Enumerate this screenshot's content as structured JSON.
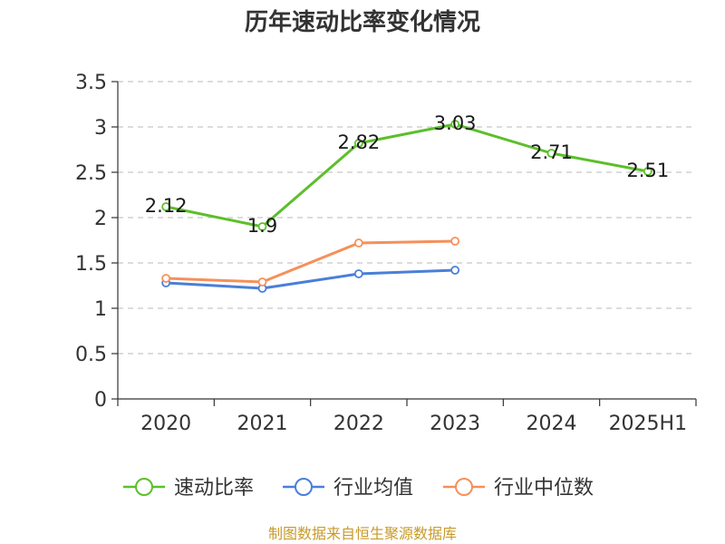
{
  "chart_data": {
    "type": "line",
    "title": "历年速动比率变化情况",
    "categories": [
      "2020",
      "2021",
      "2022",
      "2023",
      "2024",
      "2025H1"
    ],
    "ylim": [
      0,
      3.5
    ],
    "yticks": [
      "0",
      "0.5",
      "1",
      "1.5",
      "2",
      "2.5",
      "3",
      "3.5"
    ],
    "grid": true,
    "legend_position": "bottom",
    "series": [
      {
        "name": "速动比率",
        "color": "#5cbf2a",
        "values": [
          2.12,
          1.9,
          2.82,
          3.03,
          2.71,
          2.51
        ],
        "labels": [
          "2.12",
          "1.9",
          "2.82",
          "3.03",
          "2.71",
          "2.51"
        ]
      },
      {
        "name": "行业均值",
        "color": "#4a7fd8",
        "values": [
          1.28,
          1.22,
          1.38,
          1.42,
          null,
          null
        ]
      },
      {
        "name": "行业中位数",
        "color": "#f5905a",
        "values": [
          1.33,
          1.29,
          1.72,
          1.74,
          null,
          null
        ]
      }
    ],
    "source": "制图数据来自恒生聚源数据库"
  }
}
